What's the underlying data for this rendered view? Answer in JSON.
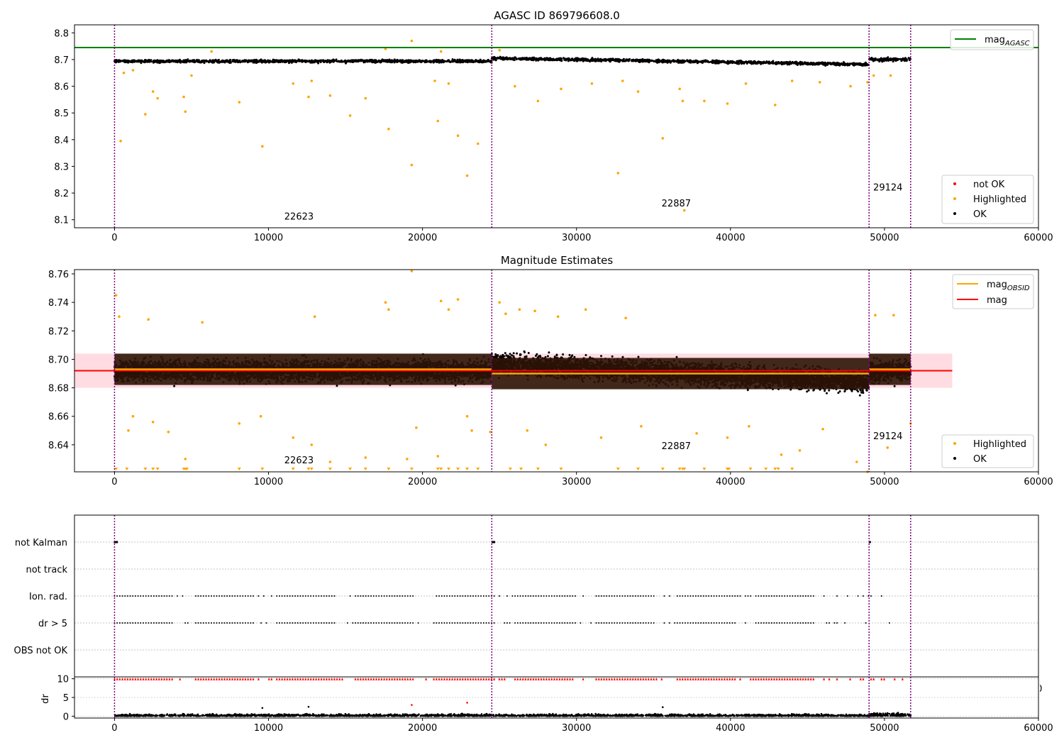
{
  "figure": {
    "title": "AGASC ID 869796608.0",
    "subtitle": "Magnitude Estimates"
  },
  "colors": {
    "ok": "#000000",
    "highlighted": "#ffa500",
    "not_ok": "#ff0000",
    "agasc_line": "#008000",
    "mag_line": "#ff0000",
    "obsid_line": "#ffa500",
    "band": "#ffc0cb",
    "obs_dark": "#2d1306",
    "boundary": "#800080",
    "grid": "#b0b0b0"
  },
  "obsids": [
    {
      "label": "22623",
      "start": 0,
      "end": 24500
    },
    {
      "label": "22887",
      "start": 24500,
      "end": 49000
    },
    {
      "label": "29124",
      "start": 49000,
      "end": 51700
    }
  ],
  "chart_data": [
    {
      "type": "scatter",
      "title": "AGASC ID 869796608.0",
      "xlim": [
        -2600,
        60000
      ],
      "ylim": [
        8.07,
        8.83
      ],
      "xticks": [
        "0",
        "10000",
        "20000",
        "30000",
        "40000",
        "50000",
        "60000"
      ],
      "xtick_values": [
        0,
        10000,
        20000,
        30000,
        40000,
        50000,
        60000
      ],
      "yticks": [
        "8.1",
        "8.2",
        "8.3",
        "8.4",
        "8.5",
        "8.6",
        "8.7",
        "8.8"
      ],
      "ytick_values": [
        8.1,
        8.2,
        8.3,
        8.4,
        8.5,
        8.6,
        8.7,
        8.8
      ],
      "mag_agasc": 8.745,
      "legend_top": [
        {
          "label": "mag",
          "sub": "AGASC",
          "color": "#008000"
        }
      ],
      "legend_bottom": [
        {
          "label": "not OK",
          "color": "#ff0000"
        },
        {
          "label": "Highlighted",
          "color": "#ffa500"
        },
        {
          "label": "OK",
          "color": "#000000"
        }
      ],
      "obsid_label_y": [
        8.1,
        8.15,
        8.21
      ],
      "series": [
        {
          "name": "OK",
          "segments": [
            {
              "start": 0,
              "end": 24500,
              "center": 8.694,
              "spread": 0.012
            },
            {
              "start": 24500,
              "end": 49000,
              "center_start": 8.705,
              "center_end": 8.682,
              "spread": 0.012
            },
            {
              "start": 49000,
              "end": 51700,
              "center": 8.7,
              "spread": 0.014
            }
          ]
        },
        {
          "name": "Highlighted",
          "points": [
            [
              400,
              8.395
            ],
            [
              2000,
              8.495
            ],
            [
              2500,
              8.58
            ],
            [
              2800,
              8.555
            ],
            [
              4500,
              8.56
            ],
            [
              4600,
              8.505
            ],
            [
              8100,
              8.54
            ],
            [
              9600,
              8.375
            ],
            [
              12600,
              8.56
            ],
            [
              14000,
              8.565
            ],
            [
              15300,
              8.49
            ],
            [
              16300,
              8.555
            ],
            [
              17800,
              8.44
            ],
            [
              19300,
              8.305
            ],
            [
              21000,
              8.47
            ],
            [
              22300,
              8.415
            ],
            [
              22900,
              8.265
            ],
            [
              23600,
              8.385
            ],
            [
              27500,
              8.545
            ],
            [
              32700,
              8.275
            ],
            [
              34000,
              8.58
            ],
            [
              35600,
              8.405
            ],
            [
              36700,
              8.59
            ],
            [
              36900,
              8.545
            ],
            [
              37000,
              8.135
            ],
            [
              38300,
              8.545
            ],
            [
              39800,
              8.535
            ],
            [
              42900,
              8.53
            ],
            [
              19300,
              8.77
            ],
            [
              25000,
              8.735
            ],
            [
              17600,
              8.74
            ],
            [
              21200,
              8.73
            ],
            [
              600,
              8.65
            ],
            [
              1200,
              8.66
            ],
            [
              5000,
              8.64
            ],
            [
              6300,
              8.73
            ],
            [
              11600,
              8.61
            ],
            [
              12800,
              8.62
            ],
            [
              20800,
              8.62
            ],
            [
              21700,
              8.61
            ],
            [
              26000,
              8.6
            ],
            [
              29000,
              8.59
            ],
            [
              31000,
              8.61
            ],
            [
              33000,
              8.62
            ],
            [
              41000,
              8.61
            ],
            [
              44000,
              8.62
            ],
            [
              45800,
              8.615
            ],
            [
              47800,
              8.6
            ],
            [
              48900,
              8.615
            ],
            [
              49300,
              8.64
            ],
            [
              50400,
              8.64
            ]
          ]
        }
      ]
    },
    {
      "type": "scatter",
      "title": "Magnitude Estimates",
      "xlim": [
        -2600,
        60000
      ],
      "ylim": [
        8.621,
        8.763
      ],
      "xticks": [
        "0",
        "10000",
        "20000",
        "30000",
        "40000",
        "50000",
        "60000"
      ],
      "xtick_values": [
        0,
        10000,
        20000,
        30000,
        40000,
        50000,
        60000
      ],
      "yticks": [
        "8.64",
        "8.66",
        "8.68",
        "8.70",
        "8.72",
        "8.74",
        "8.76"
      ],
      "ytick_values": [
        8.64,
        8.66,
        8.68,
        8.7,
        8.72,
        8.74,
        8.76
      ],
      "mag": 8.692,
      "mag_band": [
        8.68,
        8.704
      ],
      "mag_obsid": [
        8.693,
        8.69,
        8.693
      ],
      "legend_top": [
        {
          "label": "mag",
          "sub": "OBSID",
          "color": "#ffa500"
        },
        {
          "label": "mag",
          "sub": "",
          "color": "#ff0000"
        }
      ],
      "legend_bottom": [
        {
          "label": "Highlighted",
          "color": "#ffa500"
        },
        {
          "label": "OK",
          "color": "#000000"
        }
      ],
      "obsid_label_y": [
        8.627,
        8.637,
        8.644
      ],
      "clipped_markers_x": [
        100,
        800,
        2000,
        2500,
        2800,
        4500,
        4600,
        4700,
        8100,
        9600,
        11600,
        12600,
        12800,
        14000,
        15300,
        16300,
        17800,
        19300,
        21000,
        21200,
        21700,
        22300,
        22900,
        23600,
        25700,
        26400,
        27500,
        29000,
        32700,
        34000,
        35600,
        36700,
        36900,
        37000,
        38300,
        39800,
        39900,
        41300,
        42300,
        42900,
        43100,
        44000
      ],
      "series": [
        {
          "name": "OK",
          "segments": [
            {
              "start": 0,
              "end": 24500,
              "center": 8.692,
              "spread": 0.016
            },
            {
              "start": 24500,
              "end": 49000,
              "center_start": 8.697,
              "center_end": 8.684,
              "spread": 0.017
            },
            {
              "start": 49000,
              "end": 51700,
              "center": 8.692,
              "spread": 0.016
            }
          ]
        },
        {
          "name": "Highlighted",
          "points": [
            [
              100,
              8.745
            ],
            [
              300,
              8.73
            ],
            [
              900,
              8.65
            ],
            [
              1200,
              8.66
            ],
            [
              2200,
              8.728
            ],
            [
              2500,
              8.656
            ],
            [
              3500,
              8.649
            ],
            [
              4600,
              8.63
            ],
            [
              5700,
              8.726
            ],
            [
              8100,
              8.655
            ],
            [
              9500,
              8.66
            ],
            [
              11600,
              8.645
            ],
            [
              12800,
              8.64
            ],
            [
              13000,
              8.73
            ],
            [
              14000,
              8.628
            ],
            [
              16300,
              8.631
            ],
            [
              17600,
              8.74
            ],
            [
              17800,
              8.735
            ],
            [
              19000,
              8.63
            ],
            [
              19300,
              8.762
            ],
            [
              19600,
              8.652
            ],
            [
              21000,
              8.632
            ],
            [
              21200,
              8.741
            ],
            [
              21700,
              8.735
            ],
            [
              22300,
              8.742
            ],
            [
              22900,
              8.66
            ],
            [
              23200,
              8.65
            ],
            [
              24400,
              8.649
            ],
            [
              25000,
              8.74
            ],
            [
              25400,
              8.732
            ],
            [
              26300,
              8.735
            ],
            [
              26800,
              8.65
            ],
            [
              27300,
              8.734
            ],
            [
              28000,
              8.64
            ],
            [
              28800,
              8.73
            ],
            [
              30600,
              8.735
            ],
            [
              31600,
              8.645
            ],
            [
              33200,
              8.729
            ],
            [
              34200,
              8.653
            ],
            [
              37800,
              8.648
            ],
            [
              39800,
              8.645
            ],
            [
              41200,
              8.653
            ],
            [
              43300,
              8.633
            ],
            [
              44500,
              8.636
            ],
            [
              46000,
              8.651
            ],
            [
              48200,
              8.628
            ],
            [
              48900,
              8.621
            ],
            [
              49400,
              8.731
            ],
            [
              50200,
              8.638
            ],
            [
              50600,
              8.731
            ],
            [
              51700,
              8.655
            ]
          ]
        }
      ]
    },
    {
      "type": "scatter",
      "title": "",
      "xlim": [
        -2600,
        60000
      ],
      "flags": [
        "not Kalman",
        "not track",
        "Ion. rad.",
        "dr > 5",
        "OBS not OK"
      ],
      "flag_points": {
        "not Kalman": [
          20,
          150,
          24550,
          24650,
          49050
        ],
        "Ion. rad.": "periodic",
        "dr > 5": "periodic"
      },
      "dr_yticks": [
        "0",
        "5",
        "10"
      ],
      "dr_ytick_values": [
        0,
        5,
        10
      ],
      "dr_ylabel": "dr",
      "dr_ylim": [
        -0.5,
        10.5
      ],
      "xticks": [
        "0",
        "10000",
        "20000",
        "30000",
        "40000",
        "50000",
        "60000"
      ],
      "xtick_values": [
        0,
        10000,
        20000,
        30000,
        40000,
        50000,
        60000
      ],
      "overlap_tick_label": "60000",
      "dr_outliers": [
        [
          19300,
          3.0
        ],
        [
          22900,
          3.6
        ],
        [
          9600,
          2.2
        ],
        [
          12600,
          2.5
        ],
        [
          35600,
          2.4
        ]
      ]
    }
  ]
}
